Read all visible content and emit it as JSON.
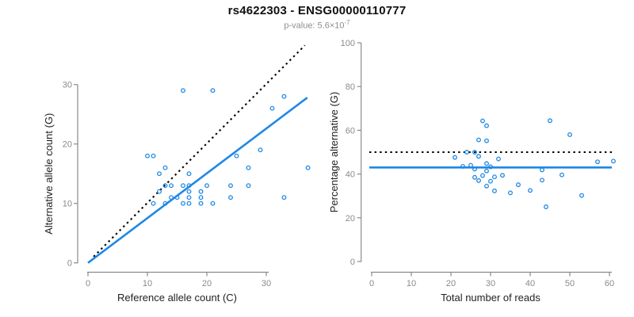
{
  "header": {
    "title": "rs4622303 - ENSG00000110777",
    "pvalue_base": "p-value: 5.6×10",
    "pvalue_exponent": "-7"
  },
  "colors": {
    "blue": "#1E88E5",
    "black": "#000000",
    "axis": "#8A8A8A",
    "tick_label": "#8A8A8A",
    "axis_title": "#222222",
    "title": "#111111",
    "subtitle": "#8E8E8E"
  },
  "chart_data": [
    {
      "type": "scatter",
      "name": "allele-counts",
      "xlabel": "Reference allele count (C)",
      "ylabel": "Alternative allele count (G)",
      "xticks": [
        0,
        10,
        20,
        30
      ],
      "yticks": [
        0,
        10,
        20,
        30
      ],
      "xlim": [
        0,
        30
      ],
      "ylim": [
        0,
        30
      ],
      "grid": false,
      "legend": "none",
      "points": [
        [
          10,
          18
        ],
        [
          11,
          18
        ],
        [
          11,
          10
        ],
        [
          12,
          15
        ],
        [
          12,
          12
        ],
        [
          13,
          16
        ],
        [
          13,
          13
        ],
        [
          13,
          10
        ],
        [
          14,
          13
        ],
        [
          14,
          11
        ],
        [
          15,
          11
        ],
        [
          16,
          29
        ],
        [
          16,
          13
        ],
        [
          16,
          10
        ],
        [
          17,
          15
        ],
        [
          17,
          13
        ],
        [
          17,
          12
        ],
        [
          17,
          11
        ],
        [
          17,
          10
        ],
        [
          19,
          12
        ],
        [
          19,
          11
        ],
        [
          19,
          10
        ],
        [
          20,
          13
        ],
        [
          21,
          29
        ],
        [
          21,
          10
        ],
        [
          24,
          13
        ],
        [
          24,
          11
        ],
        [
          25,
          18
        ],
        [
          27,
          16
        ],
        [
          27,
          13
        ],
        [
          29,
          19
        ],
        [
          31,
          26
        ],
        [
          33,
          28
        ],
        [
          33,
          11
        ],
        [
          37,
          16
        ]
      ],
      "lines": [
        {
          "name": "identity-line",
          "type": "segment",
          "style": "dotted",
          "color": "black",
          "x1": 0.95,
          "y1": 1.05,
          "x2": 36.5,
          "y2": 36.6
        },
        {
          "name": "regression-line",
          "type": "segment",
          "style": "solid",
          "color": "blue",
          "x1": 0,
          "y1": 0,
          "x2": 36.9,
          "y2": 27.8
        }
      ]
    },
    {
      "type": "scatter",
      "name": "percentage-vs-reads",
      "xlabel": "Total number of reads",
      "ylabel": "Percentage alternative (G)",
      "xticks": [
        0,
        10,
        20,
        30,
        40,
        50,
        60
      ],
      "yticks": [
        0,
        20,
        40,
        60,
        80,
        100
      ],
      "xlim": [
        0,
        60
      ],
      "ylim": [
        0,
        100
      ],
      "grid": false,
      "legend": "none",
      "points": [
        [
          28,
          64.3
        ],
        [
          29,
          62.1
        ],
        [
          21,
          47.6
        ],
        [
          27,
          55.6
        ],
        [
          24,
          50
        ],
        [
          29,
          55.2
        ],
        [
          26,
          50
        ],
        [
          23,
          43.5
        ],
        [
          27,
          48.1
        ],
        [
          25,
          44
        ],
        [
          26,
          42.3
        ],
        [
          45,
          64.4
        ],
        [
          29,
          44.8
        ],
        [
          26,
          38.5
        ],
        [
          32,
          46.9
        ],
        [
          30,
          43.3
        ],
        [
          29,
          41.4
        ],
        [
          28,
          39.3
        ],
        [
          27,
          37
        ],
        [
          31,
          38.7
        ],
        [
          30,
          36.7
        ],
        [
          29,
          34.5
        ],
        [
          33,
          39.4
        ],
        [
          50,
          58
        ],
        [
          31,
          32.3
        ],
        [
          37,
          35.1
        ],
        [
          35,
          31.4
        ],
        [
          43,
          41.9
        ],
        [
          43,
          37.2
        ],
        [
          40,
          32.5
        ],
        [
          48,
          39.6
        ],
        [
          57,
          45.6
        ],
        [
          61,
          45.9
        ],
        [
          44,
          25
        ],
        [
          53,
          30.2
        ]
      ],
      "lines": [
        {
          "name": "expected-50-line",
          "type": "hline",
          "style": "dotted",
          "color": "black",
          "y": 50
        },
        {
          "name": "mean-percentage-line",
          "type": "hline",
          "style": "solid",
          "color": "blue",
          "y": 43
        }
      ]
    }
  ]
}
